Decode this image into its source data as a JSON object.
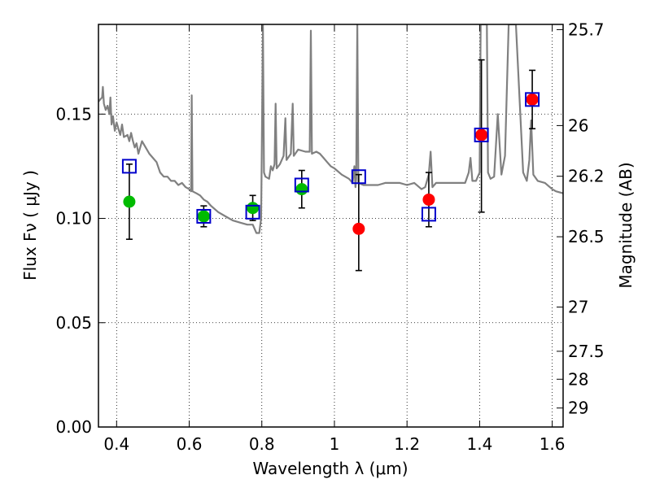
{
  "chart_data": {
    "type": "scatter",
    "title": "",
    "xlabel": "Wavelength  λ (μm)",
    "ylabel": "Flux  Fν  ( μJy )",
    "y2label": "Magnitude (AB)",
    "xlim": [
      0.35,
      1.63
    ],
    "ylim": [
      0.0,
      0.193
    ],
    "grid": true,
    "x_ticks": [
      {
        "value": 0.4,
        "label": "0.4"
      },
      {
        "value": 0.6,
        "label": "0.6"
      },
      {
        "value": 0.8,
        "label": "0.8"
      },
      {
        "value": 1.0,
        "label": "1"
      },
      {
        "value": 1.2,
        "label": "1.2"
      },
      {
        "value": 1.4,
        "label": "1.4"
      },
      {
        "value": 1.6,
        "label": "1.6"
      }
    ],
    "y_ticks": [
      {
        "value": 0.0,
        "label": "0.00"
      },
      {
        "value": 0.05,
        "label": "0.05"
      },
      {
        "value": 0.1,
        "label": "0.10"
      },
      {
        "value": 0.15,
        "label": "0.15"
      }
    ],
    "mag_ticks": [
      {
        "mag": 25.7,
        "flux": 0.1905,
        "label": "25.7"
      },
      {
        "mag": 26,
        "flux": 0.1445,
        "label": "26"
      },
      {
        "mag": 26.2,
        "flux": 0.1202,
        "label": "26.2"
      },
      {
        "mag": 26.5,
        "flux": 0.0912,
        "label": "26.5"
      },
      {
        "mag": 27,
        "flux": 0.0575,
        "label": "27"
      },
      {
        "mag": 27.5,
        "flux": 0.0363,
        "label": "27.5"
      },
      {
        "mag": 28,
        "flux": 0.0229,
        "label": "28"
      },
      {
        "mag": 29,
        "flux": 0.0091,
        "label": "29"
      }
    ],
    "series": [
      {
        "kind": "model-spectrum",
        "color": "#808080",
        "points": [
          [
            0.35,
            0.156
          ],
          [
            0.355,
            0.157
          ],
          [
            0.36,
            0.158
          ],
          [
            0.362,
            0.163
          ],
          [
            0.365,
            0.155
          ],
          [
            0.37,
            0.152
          ],
          [
            0.375,
            0.154
          ],
          [
            0.38,
            0.15
          ],
          [
            0.383,
            0.158
          ],
          [
            0.386,
            0.145
          ],
          [
            0.39,
            0.149
          ],
          [
            0.395,
            0.142
          ],
          [
            0.4,
            0.146
          ],
          [
            0.405,
            0.143
          ],
          [
            0.41,
            0.14
          ],
          [
            0.415,
            0.145
          ],
          [
            0.42,
            0.139
          ],
          [
            0.43,
            0.14
          ],
          [
            0.435,
            0.137
          ],
          [
            0.44,
            0.141
          ],
          [
            0.445,
            0.137
          ],
          [
            0.45,
            0.134
          ],
          [
            0.455,
            0.136
          ],
          [
            0.46,
            0.131
          ],
          [
            0.47,
            0.137
          ],
          [
            0.48,
            0.134
          ],
          [
            0.49,
            0.131
          ],
          [
            0.5,
            0.129
          ],
          [
            0.51,
            0.127
          ],
          [
            0.52,
            0.122
          ],
          [
            0.53,
            0.12
          ],
          [
            0.54,
            0.12
          ],
          [
            0.55,
            0.118
          ],
          [
            0.56,
            0.118
          ],
          [
            0.57,
            0.116
          ],
          [
            0.58,
            0.117
          ],
          [
            0.59,
            0.115
          ],
          [
            0.6,
            0.114
          ],
          [
            0.605,
            0.113
          ],
          [
            0.607,
            0.159
          ],
          [
            0.609,
            0.113
          ],
          [
            0.62,
            0.112
          ],
          [
            0.63,
            0.111
          ],
          [
            0.64,
            0.109
          ],
          [
            0.65,
            0.108
          ],
          [
            0.66,
            0.106
          ],
          [
            0.68,
            0.103
          ],
          [
            0.7,
            0.101
          ],
          [
            0.72,
            0.099
          ],
          [
            0.74,
            0.098
          ],
          [
            0.76,
            0.097
          ],
          [
            0.775,
            0.097
          ],
          [
            0.785,
            0.093
          ],
          [
            0.793,
            0.093
          ],
          [
            0.798,
            0.1
          ],
          [
            0.8,
            0.132
          ],
          [
            0.803,
            0.193
          ],
          [
            0.806,
            0.122
          ],
          [
            0.81,
            0.12
          ],
          [
            0.82,
            0.119
          ],
          [
            0.825,
            0.125
          ],
          [
            0.83,
            0.123
          ],
          [
            0.835,
            0.126
          ],
          [
            0.838,
            0.155
          ],
          [
            0.841,
            0.124
          ],
          [
            0.85,
            0.126
          ],
          [
            0.86,
            0.13
          ],
          [
            0.865,
            0.148
          ],
          [
            0.868,
            0.128
          ],
          [
            0.88,
            0.131
          ],
          [
            0.885,
            0.155
          ],
          [
            0.888,
            0.13
          ],
          [
            0.9,
            0.133
          ],
          [
            0.92,
            0.132
          ],
          [
            0.932,
            0.132
          ],
          [
            0.935,
            0.19
          ],
          [
            0.938,
            0.131
          ],
          [
            0.95,
            0.132
          ],
          [
            0.96,
            0.131
          ],
          [
            0.97,
            0.129
          ],
          [
            0.98,
            0.127
          ],
          [
            0.99,
            0.125
          ],
          [
            1.0,
            0.124
          ],
          [
            1.02,
            0.121
          ],
          [
            1.04,
            0.119
          ],
          [
            1.05,
            0.117
          ],
          [
            1.055,
            0.125
          ],
          [
            1.058,
            0.115
          ],
          [
            1.06,
            0.119
          ],
          [
            1.063,
            0.193
          ],
          [
            1.066,
            0.117
          ],
          [
            1.08,
            0.116
          ],
          [
            1.1,
            0.116
          ],
          [
            1.12,
            0.116
          ],
          [
            1.14,
            0.117
          ],
          [
            1.16,
            0.117
          ],
          [
            1.18,
            0.117
          ],
          [
            1.2,
            0.116
          ],
          [
            1.22,
            0.117
          ],
          [
            1.24,
            0.114
          ],
          [
            1.25,
            0.115
          ],
          [
            1.26,
            0.121
          ],
          [
            1.265,
            0.132
          ],
          [
            1.27,
            0.115
          ],
          [
            1.28,
            0.117
          ],
          [
            1.3,
            0.117
          ],
          [
            1.32,
            0.117
          ],
          [
            1.34,
            0.117
          ],
          [
            1.36,
            0.117
          ],
          [
            1.37,
            0.122
          ],
          [
            1.375,
            0.129
          ],
          [
            1.38,
            0.118
          ],
          [
            1.39,
            0.118
          ],
          [
            1.4,
            0.122
          ],
          [
            1.403,
            0.193
          ],
          [
            1.42,
            0.193
          ],
          [
            1.423,
            0.122
          ],
          [
            1.43,
            0.119
          ],
          [
            1.44,
            0.12
          ],
          [
            1.45,
            0.15
          ],
          [
            1.46,
            0.121
          ],
          [
            1.47,
            0.13
          ],
          [
            1.48,
            0.193
          ],
          [
            1.5,
            0.193
          ],
          [
            1.52,
            0.122
          ],
          [
            1.53,
            0.118
          ],
          [
            1.537,
            0.128
          ],
          [
            1.542,
            0.147
          ],
          [
            1.548,
            0.121
          ],
          [
            1.56,
            0.118
          ],
          [
            1.58,
            0.117
          ],
          [
            1.6,
            0.114
          ],
          [
            1.61,
            0.113
          ],
          [
            1.63,
            0.112
          ]
        ]
      },
      {
        "kind": "model-photometry",
        "marker": "open-square",
        "color": "#0000cc",
        "x": [
          0.435,
          0.64,
          0.775,
          0.91,
          1.067,
          1.26,
          1.405,
          1.545
        ],
        "y": [
          0.125,
          0.101,
          0.103,
          0.116,
          0.12,
          0.102,
          0.14,
          0.157
        ]
      },
      {
        "kind": "observed-green",
        "marker": "filled-circle",
        "color": "#00bb00",
        "x": [
          0.435,
          0.64,
          0.775,
          0.91
        ],
        "y": [
          0.108,
          0.101,
          0.105,
          0.114
        ],
        "yerr_low": [
          0.09,
          0.096,
          0.099,
          0.105
        ],
        "yerr_high": [
          0.126,
          0.106,
          0.111,
          0.123
        ]
      },
      {
        "kind": "observed-red",
        "marker": "filled-circle",
        "color": "#ff0000",
        "x": [
          1.067,
          1.26,
          1.405,
          1.545
        ],
        "y": [
          0.095,
          0.109,
          0.14,
          0.157
        ],
        "yerr_low": [
          0.075,
          0.096,
          0.103,
          0.143
        ],
        "yerr_high": [
          0.121,
          0.122,
          0.176,
          0.171
        ]
      }
    ]
  }
}
